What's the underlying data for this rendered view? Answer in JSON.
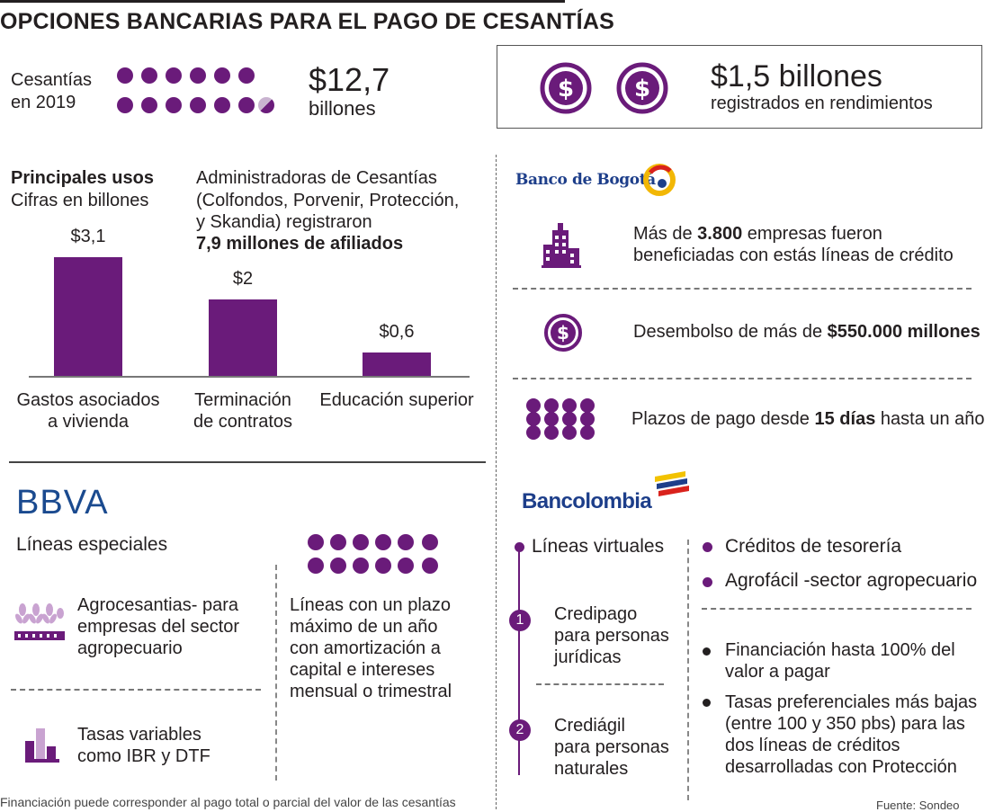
{
  "title": "OPCIONES BANCARIAS PARA EL PAGO DE CESANTÍAS",
  "summary": {
    "cesantias_label_1": "Cesantías",
    "cesantias_label_2": "en 2019",
    "cesantias_value": "$12,7",
    "cesantias_unit": "billones",
    "rendimientos_value": "$1,5 billones",
    "rendimientos_text": "registrados en rendimientos"
  },
  "usos": {
    "heading": "Principales usos",
    "subheading": "Cifras en billones",
    "note_lines": [
      "Administradoras de Cesantías",
      "(Colfondos, Porvenir, Protección,",
      "y Skandia) registraron"
    ],
    "note_bold": "7,9 millones de afiliados"
  },
  "chart_data": {
    "type": "bar",
    "title": "Principales usos",
    "subtitle": "Cifras en billones",
    "categories": [
      "Gastos asociados a vivienda",
      "Terminación de contratos",
      "Educación superior"
    ],
    "category_lines": [
      [
        "Gastos asociados",
        "a vivienda"
      ],
      [
        "Terminación",
        "de contratos"
      ],
      [
        "Educación superior"
      ]
    ],
    "values": [
      3.1,
      2,
      0.6
    ],
    "value_labels": [
      "$3,1",
      "$2",
      "$0,6"
    ],
    "ylim": [
      0,
      3.1
    ],
    "color": "#6a1b7a",
    "grid": false
  },
  "bogota": {
    "logo_text": "Banco de Bogotá",
    "item1_pre": "Más de ",
    "item1_bold": "3.800",
    "item1_post": " empresas fueron",
    "item1_line2": "beneficiadas con estás líneas de crédito",
    "item2_pre": "Desembolso de más de ",
    "item2_bold": "$550.000 millones",
    "item3_pre": "Plazos de pago desde ",
    "item3_bold": "15 días",
    "item3_post": " hasta un año"
  },
  "bbva": {
    "logo_text": "BBVA",
    "heading": "Líneas especiales",
    "item1_lines": [
      "Agrocesantias- para",
      "empresas del sector",
      "agropecuario"
    ],
    "item2_lines": [
      "Tasas variables",
      "como IBR y DTF"
    ],
    "right_lines": [
      "Líneas con un plazo",
      "máximo de un año",
      "con amortización a",
      "capital e intereses",
      "mensual o trimestral"
    ]
  },
  "bancolombia": {
    "logo_text": "Bancolombia",
    "virtual_heading": "Líneas virtuales",
    "item1_num": "1",
    "item1_lines": [
      "Credipago",
      "para personas",
      "jurídicas"
    ],
    "item2_num": "2",
    "item2_lines": [
      "Crediágil",
      "para personas",
      "naturales"
    ],
    "right_b1": "Créditos de tesorería",
    "right_b2": "Agrofácil -sector agropecuario",
    "right_b3_lines": [
      "Financiación hasta 100% del",
      "valor a pagar"
    ],
    "right_b4_lines": [
      "Tasas preferenciales más bajas",
      "(entre 100 y 350 pbs) para las",
      "dos líneas de créditos",
      "desarrolladas con Protección"
    ]
  },
  "footer": {
    "note": "Financiación puede corresponder al pago total o parcial del valor de las cesantías",
    "source": "Fuente: Sondeo"
  },
  "colors": {
    "accent": "#6a1b7a",
    "bbva_blue": "#1a4a8f",
    "bogota_blue": "#1d3e8a"
  }
}
